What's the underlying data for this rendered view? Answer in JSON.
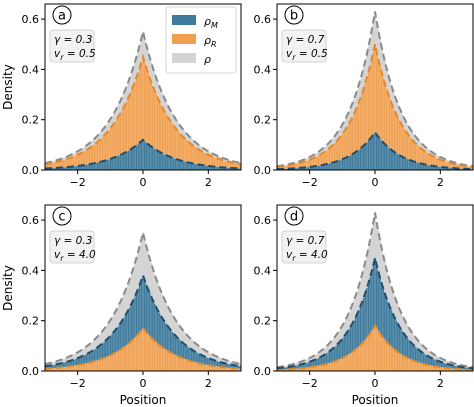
{
  "colors": {
    "rho_m": "#3d7a9c",
    "rho_m_line": "#1f4e6e",
    "rho_r": "#f0a050",
    "rho": "#d4d4d4",
    "rho_line": "#8a8a8a",
    "param_box_bg": "#f2f2f2",
    "param_box_edge": "#c8c8c8"
  },
  "axes_text": {
    "ylabel": "Density",
    "xlabel": "Position"
  },
  "legend": {
    "entries": [
      {
        "key": "rho_m",
        "label": "ρ_M"
      },
      {
        "key": "rho_r",
        "label": "ρ_R"
      },
      {
        "key": "rho",
        "label": "ρ"
      }
    ]
  },
  "chart_data": [
    {
      "type": "area",
      "panel": "a",
      "gamma": "0.3",
      "v_r": "0.5",
      "xlim": [
        -3,
        3
      ],
      "ylim": [
        0,
        0.66
      ],
      "x_ticks": [
        "−2",
        "0",
        "2"
      ],
      "y_ticks": [
        "0.0",
        "0.2",
        "0.4",
        "0.6"
      ],
      "grid": false,
      "legend": "top-center",
      "series": [
        {
          "name": "ρ_M",
          "peak": 0.12,
          "decay": 1.0,
          "style": "bars+dashed"
        },
        {
          "name": "ρ_R",
          "peak": 0.45,
          "decay": 1.0,
          "style": "bars+dashed"
        },
        {
          "name": "ρ",
          "peak": 0.55,
          "decay": 1.0,
          "style": "bars+dashed"
        }
      ]
    },
    {
      "type": "area",
      "panel": "b",
      "gamma": "0.7",
      "v_r": "0.5",
      "xlim": [
        -3,
        3
      ],
      "ylim": [
        0,
        0.66
      ],
      "x_ticks": [
        "−2",
        "0",
        "2"
      ],
      "y_ticks": [
        "0.0",
        "0.2",
        "0.4",
        "0.6"
      ],
      "grid": false,
      "series": [
        {
          "name": "ρ_M",
          "peak": 0.15,
          "decay": 1.25,
          "style": "bars+dashed"
        },
        {
          "name": "ρ_R",
          "peak": 0.5,
          "decay": 1.25,
          "style": "bars+dashed"
        },
        {
          "name": "ρ",
          "peak": 0.63,
          "decay": 1.25,
          "style": "bars+dashed"
        }
      ]
    },
    {
      "type": "area",
      "panel": "c",
      "gamma": "0.3",
      "v_r": "4.0",
      "xlim": [
        -3,
        3
      ],
      "ylim": [
        0,
        0.66
      ],
      "x_ticks": [
        "−2",
        "0",
        "2"
      ],
      "y_ticks": [
        "0.0",
        "0.2",
        "0.4",
        "0.6"
      ],
      "grid": false,
      "series": [
        {
          "name": "ρ_M",
          "peak": 0.38,
          "decay": 1.0,
          "style": "bars+dashed"
        },
        {
          "name": "ρ_R",
          "peak": 0.17,
          "decay": 1.0,
          "style": "bars+dashed"
        },
        {
          "name": "ρ",
          "peak": 0.55,
          "decay": 1.0,
          "style": "bars+dashed"
        }
      ]
    },
    {
      "type": "area",
      "panel": "d",
      "gamma": "0.7",
      "v_r": "4.0",
      "xlim": [
        -3,
        3
      ],
      "ylim": [
        0,
        0.66
      ],
      "x_ticks": [
        "−2",
        "0",
        "2"
      ],
      "y_ticks": [
        "0.0",
        "0.2",
        "0.4",
        "0.6"
      ],
      "grid": false,
      "series": [
        {
          "name": "ρ_M",
          "peak": 0.45,
          "decay": 1.25,
          "style": "bars+dashed"
        },
        {
          "name": "ρ_R",
          "peak": 0.18,
          "decay": 1.25,
          "style": "bars+dashed"
        },
        {
          "name": "ρ",
          "peak": 0.63,
          "decay": 1.25,
          "style": "bars+dashed"
        }
      ]
    }
  ]
}
